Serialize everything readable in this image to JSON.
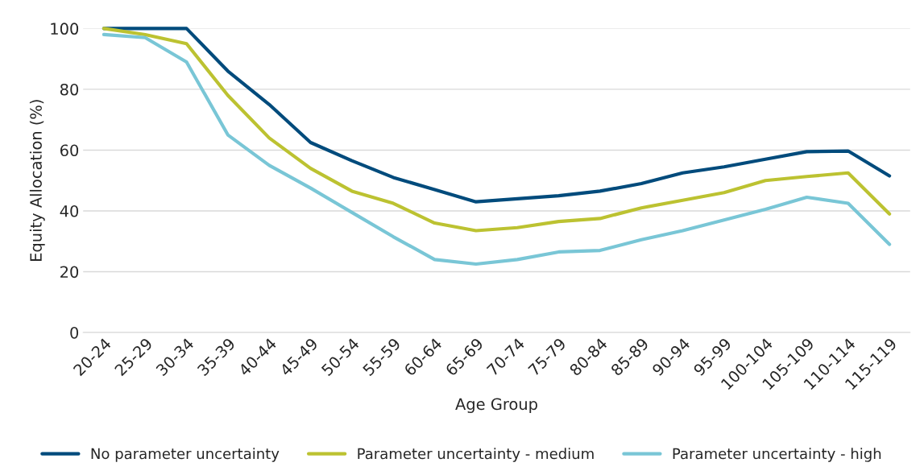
{
  "chart_data": {
    "type": "line",
    "xlabel": "Age Group",
    "ylabel": "Equity Allocation (%)",
    "categories": [
      "20-24",
      "25-29",
      "30-34",
      "35-39",
      "40-44",
      "45-49",
      "50-54",
      "55-59",
      "60-64",
      "65-69",
      "70-74",
      "75-79",
      "80-84",
      "85-89",
      "90-94",
      "95-99",
      "100-104",
      "105-109",
      "110-114",
      "115-119"
    ],
    "series": [
      {
        "name": "No parameter uncertainty",
        "color": "#004b7c",
        "values": [
          100,
          100,
          100,
          86,
          75,
          62.5,
          56.5,
          51,
          47,
          43,
          44,
          45,
          46.5,
          49,
          52.5,
          54.5,
          57,
          59.5,
          59.7,
          51.5
        ]
      },
      {
        "name": "Parameter uncertainty - medium",
        "color": "#bcc231",
        "values": [
          100,
          98,
          95,
          78,
          64,
          54,
          46.5,
          42.5,
          36,
          33.5,
          34.5,
          36.5,
          37.5,
          41,
          43.5,
          46,
          50,
          51.3,
          52.5,
          39
        ]
      },
      {
        "name": "Parameter uncertainty - high",
        "color": "#79c6d6",
        "values": [
          98,
          97,
          89,
          65,
          55,
          47.5,
          39.5,
          31.5,
          24,
          22.5,
          24,
          26.5,
          27,
          30.5,
          33.5,
          37,
          40.5,
          44.5,
          42.5,
          29
        ]
      }
    ],
    "ylim": [
      0,
      100
    ],
    "yticks": [
      0,
      20,
      40,
      60,
      80,
      100
    ],
    "grid": "y",
    "legend": "bottom",
    "marker": "none",
    "line_style": "solid"
  }
}
